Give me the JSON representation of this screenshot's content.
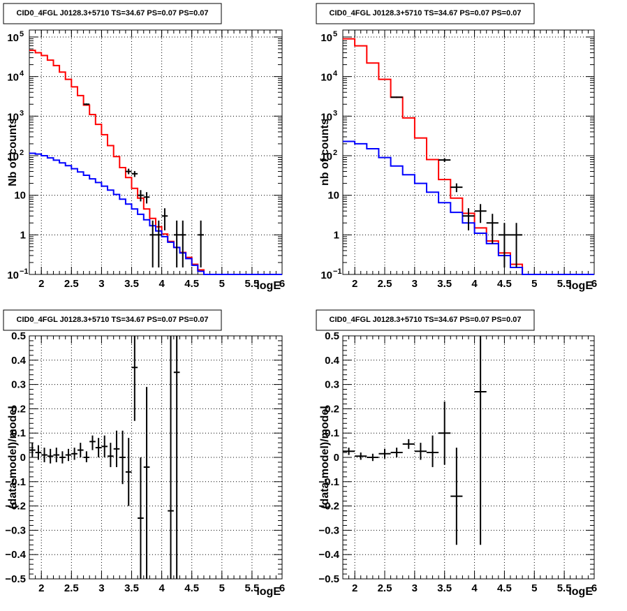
{
  "colors": {
    "data": "#000000",
    "total_model": "#ff0000",
    "source_model": "#0000ff",
    "grid": "#000000"
  },
  "chart_data": [
    {
      "type": "histogram",
      "title": "CID0_4FGL J0128.3+5710 TS=34.67 PS=0.07 PS=0.07",
      "xlabel": "logE",
      "ylabel": "Nb of counts",
      "xlim": [
        1.8,
        6.0
      ],
      "ylim": [
        0.1,
        150000
      ],
      "yscale": "log",
      "grid": true,
      "x_ticks": [
        "2",
        "2.5",
        "3",
        "3.5",
        "4",
        "4.5",
        "5",
        "5.5",
        "6"
      ],
      "y_ticks": [
        {
          "value": 0.1,
          "base": "10",
          "exp": "−1"
        },
        {
          "value": 1,
          "label": "1"
        },
        {
          "value": 10,
          "label": "10"
        },
        {
          "value": 100,
          "base": "10",
          "exp": "2"
        },
        {
          "value": 1000,
          "base": "10",
          "exp": "3"
        },
        {
          "value": 10000,
          "base": "10",
          "exp": "4"
        },
        {
          "value": 100000,
          "base": "10",
          "exp": "5"
        }
      ],
      "bin_edges": [
        1.8,
        1.9,
        2.0,
        2.1,
        2.2,
        2.3,
        2.4,
        2.5,
        2.6,
        2.7,
        2.8,
        2.9,
        3.0,
        3.1,
        3.2,
        3.3,
        3.4,
        3.5,
        3.6,
        3.7,
        3.8,
        3.9,
        4.0,
        4.1,
        4.2,
        4.3,
        4.4,
        4.5,
        4.6,
        4.7,
        4.8,
        4.9,
        5.0,
        5.1,
        5.2,
        5.3,
        5.4,
        5.5,
        5.6,
        5.7,
        5.8,
        5.9,
        6.0
      ],
      "series": [
        {
          "role": "total_model",
          "values": [
            46000,
            40000,
            34000,
            26000,
            19000,
            13000,
            8500,
            5500,
            3300,
            1900,
            1100,
            620,
            340,
            180,
            95,
            50,
            28,
            15,
            8.5,
            4.5,
            2.6,
            1.6,
            1.05,
            0.68,
            0.48,
            0.36,
            0.27,
            0.18,
            0.13,
            0.1,
            0.1,
            0.1,
            0.1,
            0.1,
            0.1,
            0.1,
            0.1,
            0.1,
            0.1,
            0.1,
            0.1,
            0.1
          ]
        },
        {
          "role": "source_model",
          "values": [
            115,
            110,
            100,
            88,
            77,
            66,
            56,
            47,
            39,
            32,
            26,
            21,
            17,
            13.5,
            10.5,
            8,
            6,
            4.5,
            3.3,
            2.4,
            1.7,
            1.25,
            0.9,
            0.65,
            0.48,
            0.35,
            0.25,
            0.17,
            0.12,
            0.1,
            0.1,
            0.1,
            0.1,
            0.1,
            0.1,
            0.1,
            0.1,
            0.1,
            0.1,
            0.1,
            0.1,
            0.1
          ]
        },
        {
          "role": "data",
          "points": [
            {
              "x": 2.75,
              "y": 2000,
              "lo": 1910,
              "hi": 2090
            },
            {
              "x": 3.45,
              "y": 40,
              "lo": 34,
              "hi": 47
            },
            {
              "x": 3.55,
              "y": 35,
              "lo": 29,
              "hi": 41
            },
            {
              "x": 3.65,
              "y": 10,
              "lo": 7,
              "hi": 13.5
            },
            {
              "x": 3.75,
              "y": 9,
              "lo": 6.2,
              "hi": 12
            },
            {
              "x": 3.85,
              "y": 1,
              "lo": 0.15,
              "hi": 2.3
            },
            {
              "x": 3.95,
              "y": 1,
              "lo": 0.15,
              "hi": 2.3
            },
            {
              "x": 4.05,
              "y": 3,
              "lo": 1.3,
              "hi": 4.7
            },
            {
              "x": 4.25,
              "y": 1,
              "lo": 0.15,
              "hi": 2.3
            },
            {
              "x": 4.35,
              "y": 1,
              "lo": 0.15,
              "hi": 2.3
            },
            {
              "x": 4.65,
              "y": 1,
              "lo": 0.15,
              "hi": 2.3
            }
          ]
        }
      ]
    },
    {
      "type": "histogram",
      "title": "CID0_4FGL J0128.3+5710 TS=34.67 PS=0.07 PS=0.07",
      "xlabel": "logE",
      "ylabel": "nb of counts",
      "xlim": [
        1.8,
        6.0
      ],
      "ylim": [
        0.1,
        150000
      ],
      "yscale": "log",
      "grid": true,
      "x_ticks": [
        "2",
        "2.5",
        "3",
        "3.5",
        "4",
        "4.5",
        "5",
        "5.5",
        "6"
      ],
      "y_ticks": [
        {
          "value": 0.1,
          "base": "10",
          "exp": "−1"
        },
        {
          "value": 1,
          "label": "1"
        },
        {
          "value": 10,
          "label": "10"
        },
        {
          "value": 100,
          "base": "10",
          "exp": "2"
        },
        {
          "value": 1000,
          "base": "10",
          "exp": "3"
        },
        {
          "value": 10000,
          "base": "10",
          "exp": "4"
        },
        {
          "value": 100000,
          "base": "10",
          "exp": "5"
        }
      ],
      "bin_edges": [
        1.8,
        2.0,
        2.2,
        2.4,
        2.6,
        2.8,
        3.0,
        3.2,
        3.4,
        3.6,
        3.8,
        4.0,
        4.2,
        4.4,
        4.6,
        4.8,
        5.0,
        5.2,
        5.4,
        5.6,
        5.8,
        6.0
      ],
      "series": [
        {
          "role": "total_model",
          "values": [
            90000,
            60000,
            22000,
            8500,
            3000,
            900,
            280,
            80,
            25,
            8.5,
            3.5,
            1.5,
            0.7,
            0.35,
            0.18,
            0.1,
            0.1,
            0.1,
            0.1,
            0.1,
            0.1
          ]
        },
        {
          "role": "source_model",
          "values": [
            230,
            200,
            150,
            90,
            55,
            33,
            20,
            12,
            6.5,
            3.7,
            2,
            1.1,
            0.6,
            0.3,
            0.15,
            0.1,
            0.1,
            0.1,
            0.1,
            0.1,
            0.1
          ]
        },
        {
          "role": "data",
          "points": [
            {
              "x": 2.7,
              "y": 3000,
              "lo": 2890,
              "hi": 3110
            },
            {
              "x": 3.5,
              "y": 78,
              "lo": 69,
              "hi": 87
            },
            {
              "x": 3.7,
              "y": 16,
              "lo": 12,
              "hi": 20
            },
            {
              "x": 3.9,
              "y": 3,
              "lo": 1.3,
              "hi": 4.7
            },
            {
              "x": 4.1,
              "y": 4,
              "lo": 2,
              "hi": 6
            },
            {
              "x": 4.3,
              "y": 2,
              "lo": 0.6,
              "hi": 3.4
            },
            {
              "x": 4.5,
              "y": 1,
              "lo": 0.15,
              "hi": 2
            },
            {
              "x": 4.7,
              "y": 1,
              "lo": 0.15,
              "hi": 2
            }
          ]
        }
      ]
    },
    {
      "type": "scatter",
      "title": "CID0_4FGL J0128.3+5710 TS=34.67 PS=0.07 PS=0.07",
      "xlabel": "logE",
      "ylabel": "(data-model)/model",
      "xlim": [
        1.8,
        6.0
      ],
      "ylim": [
        -0.5,
        0.5
      ],
      "grid": true,
      "x_ticks": [
        "2",
        "2.5",
        "3",
        "3.5",
        "4",
        "4.5",
        "5",
        "5.5",
        "6"
      ],
      "y_ticks": [
        "−0.5",
        "−0.4",
        "−0.3",
        "−0.2",
        "−0.1",
        "0",
        "0.1",
        "0.2",
        "0.3",
        "0.4",
        "0.5"
      ],
      "bin_half_width": 0.05,
      "series": [
        {
          "role": "data",
          "points": [
            {
              "x": 1.85,
              "y": 0.03,
              "lo": 0.0,
              "hi": 0.06
            },
            {
              "x": 1.95,
              "y": 0.02,
              "lo": -0.01,
              "hi": 0.05
            },
            {
              "x": 2.05,
              "y": 0.01,
              "lo": -0.02,
              "hi": 0.04
            },
            {
              "x": 2.15,
              "y": 0.005,
              "lo": -0.025,
              "hi": 0.035
            },
            {
              "x": 2.25,
              "y": 0.01,
              "lo": -0.02,
              "hi": 0.04
            },
            {
              "x": 2.35,
              "y": 0.0,
              "lo": -0.025,
              "hi": 0.025
            },
            {
              "x": 2.45,
              "y": 0.01,
              "lo": -0.015,
              "hi": 0.035
            },
            {
              "x": 2.55,
              "y": 0.015,
              "lo": -0.01,
              "hi": 0.04
            },
            {
              "x": 2.65,
              "y": 0.03,
              "lo": 0.0,
              "hi": 0.06
            },
            {
              "x": 2.75,
              "y": 0.0,
              "lo": -0.02,
              "hi": 0.025
            },
            {
              "x": 2.85,
              "y": 0.065,
              "lo": 0.03,
              "hi": 0.09
            },
            {
              "x": 2.95,
              "y": 0.04,
              "lo": 0.0,
              "hi": 0.08
            },
            {
              "x": 3.05,
              "y": 0.045,
              "lo": 0.0,
              "hi": 0.09
            },
            {
              "x": 3.15,
              "y": 0.005,
              "lo": -0.04,
              "hi": 0.06
            },
            {
              "x": 3.25,
              "y": 0.035,
              "lo": -0.04,
              "hi": 0.11
            },
            {
              "x": 3.35,
              "y": 0.0,
              "lo": -0.11,
              "hi": 0.11
            },
            {
              "x": 3.45,
              "y": -0.06,
              "lo": -0.2,
              "hi": 0.08
            },
            {
              "x": 3.55,
              "y": 0.37,
              "lo": 0.15,
              "hi": 0.5
            },
            {
              "x": 3.65,
              "y": -0.25,
              "lo": -0.5,
              "hi": 0.0
            },
            {
              "x": 3.75,
              "y": -0.04,
              "lo": -0.5,
              "hi": 0.29
            },
            {
              "x": 4.15,
              "y": -0.22,
              "lo": -0.5,
              "hi": 0.5
            },
            {
              "x": 4.25,
              "y": 0.35,
              "lo": -0.5,
              "hi": 0.5
            }
          ]
        }
      ]
    },
    {
      "type": "scatter",
      "title": "CID0_4FGL J0128.3+5710 TS=34.67 PS=0.07 PS=0.07",
      "xlabel": "logE",
      "ylabel": "(data-model)/model",
      "xlim": [
        1.8,
        6.0
      ],
      "ylim": [
        -0.5,
        0.5
      ],
      "grid": true,
      "x_ticks": [
        "2",
        "2.5",
        "3",
        "3.5",
        "4",
        "4.5",
        "5",
        "5.5",
        "6"
      ],
      "y_ticks": [
        "−0.5",
        "−0.4",
        "−0.3",
        "−0.2",
        "−0.1",
        "0",
        "0.1",
        "0.2",
        "0.3",
        "0.4",
        "0.5"
      ],
      "bin_half_width": 0.1,
      "series": [
        {
          "role": "data",
          "points": [
            {
              "x": 1.9,
              "y": 0.025,
              "lo": 0.01,
              "hi": 0.04
            },
            {
              "x": 2.1,
              "y": 0.005,
              "lo": -0.01,
              "hi": 0.02
            },
            {
              "x": 2.3,
              "y": 0.0,
              "lo": -0.015,
              "hi": 0.015
            },
            {
              "x": 2.5,
              "y": 0.015,
              "lo": -0.005,
              "hi": 0.035
            },
            {
              "x": 2.7,
              "y": 0.02,
              "lo": 0.0,
              "hi": 0.04
            },
            {
              "x": 2.9,
              "y": 0.055,
              "lo": 0.035,
              "hi": 0.075
            },
            {
              "x": 3.1,
              "y": 0.025,
              "lo": -0.01,
              "hi": 0.06
            },
            {
              "x": 3.3,
              "y": 0.02,
              "lo": -0.04,
              "hi": 0.09
            },
            {
              "x": 3.5,
              "y": 0.1,
              "lo": -0.03,
              "hi": 0.23
            },
            {
              "x": 3.7,
              "y": -0.16,
              "lo": -0.36,
              "hi": 0.04
            },
            {
              "x": 4.1,
              "y": 0.27,
              "lo": -0.36,
              "hi": 0.5
            }
          ]
        }
      ]
    }
  ]
}
